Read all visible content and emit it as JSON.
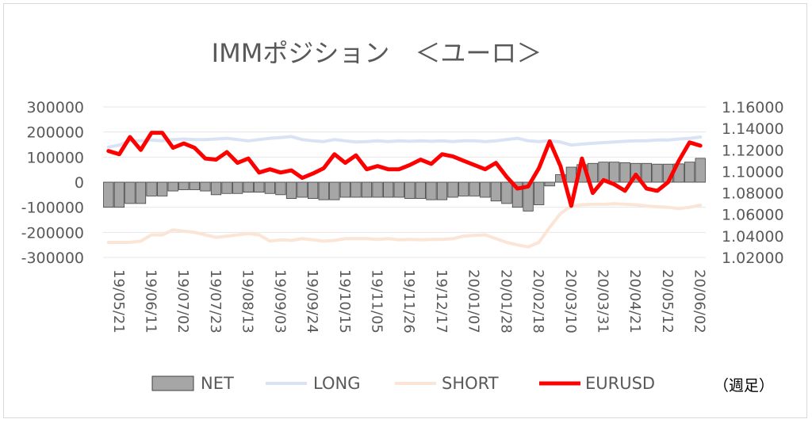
{
  "chart_data": {
    "type": "bar+line",
    "title": "IMMポジション　＜ユーロ＞",
    "note": "（週足）",
    "y_left": {
      "min": -300000,
      "max": 300000,
      "step": 100000,
      "ticks": [
        "300000",
        "200000",
        "100000",
        "0",
        "-100000",
        "-200000",
        "-300000"
      ]
    },
    "y_right": {
      "min": 1.02,
      "max": 1.16,
      "step": 0.02,
      "ticks": [
        "1.16000",
        "1.14000",
        "1.12000",
        "1.10000",
        "1.08000",
        "1.06000",
        "1.04000",
        "1.02000"
      ]
    },
    "x_tick_labels": [
      "19/05/21",
      "19/06/11",
      "19/07/02",
      "19/07/23",
      "19/08/13",
      "19/09/03",
      "19/09/24",
      "19/10/15",
      "19/11/05",
      "19/11/26",
      "19/12/17",
      "20/01/07",
      "20/01/28",
      "20/02/18",
      "20/03/10",
      "20/03/31",
      "20/04/21",
      "20/05/12",
      "20/06/02"
    ],
    "colors": {
      "net": "#a6a6a6",
      "long": "#dae3f3",
      "short": "#fbe5d6",
      "eurusd": "#ff0000"
    },
    "series": [
      {
        "name": "NET",
        "type": "bar",
        "axis": "left",
        "values": [
          -100000,
          -100000,
          -85000,
          -85000,
          -55000,
          -55000,
          -35000,
          -30000,
          -30000,
          -35000,
          -50000,
          -45000,
          -45000,
          -40000,
          -40000,
          -45000,
          -50000,
          -65000,
          -60000,
          -65000,
          -70000,
          -70000,
          -60000,
          -60000,
          -60000,
          -60000,
          -60000,
          -60000,
          -65000,
          -65000,
          -70000,
          -70000,
          -60000,
          -55000,
          -55000,
          -60000,
          -75000,
          -85000,
          -100000,
          -115000,
          -90000,
          -15000,
          30000,
          60000,
          70000,
          75000,
          80000,
          80000,
          78000,
          75000,
          75000,
          72000,
          72000,
          73000,
          80000,
          95000
        ]
      },
      {
        "name": "LONG",
        "type": "line",
        "axis": "left",
        "values": [
          140000,
          148000,
          165000,
          165000,
          168000,
          165000,
          170000,
          172000,
          170000,
          170000,
          172000,
          175000,
          170000,
          165000,
          170000,
          175000,
          178000,
          182000,
          170000,
          165000,
          162000,
          170000,
          165000,
          160000,
          162000,
          165000,
          162000,
          165000,
          163000,
          165000,
          163000,
          165000,
          162000,
          165000,
          165000,
          162000,
          165000,
          170000,
          175000,
          165000,
          162000,
          165000,
          160000,
          148000,
          152000,
          155000,
          158000,
          160000,
          163000,
          165000,
          165000,
          168000,
          168000,
          172000,
          175000,
          180000
        ]
      },
      {
        "name": "SHORT",
        "type": "line",
        "axis": "left",
        "values": [
          -240000,
          -240000,
          -240000,
          -235000,
          -210000,
          -210000,
          -190000,
          -195000,
          -200000,
          -210000,
          -220000,
          -215000,
          -210000,
          -205000,
          -210000,
          -235000,
          -230000,
          -232000,
          -225000,
          -230000,
          -235000,
          -232000,
          -225000,
          -225000,
          -225000,
          -228000,
          -225000,
          -230000,
          -228000,
          -230000,
          -228000,
          -228000,
          -225000,
          -215000,
          -212000,
          -210000,
          -225000,
          -240000,
          -250000,
          -258000,
          -240000,
          -180000,
          -125000,
          -95000,
          -90000,
          -88000,
          -88000,
          -86000,
          -88000,
          -90000,
          -95000,
          -98000,
          -100000,
          -105000,
          -100000,
          -92000
        ]
      },
      {
        "name": "EURUSD",
        "type": "line",
        "axis": "right",
        "values": [
          1.119,
          1.116,
          1.132,
          1.12,
          1.136,
          1.136,
          1.122,
          1.126,
          1.122,
          1.112,
          1.111,
          1.118,
          1.108,
          1.112,
          1.099,
          1.102,
          1.099,
          1.101,
          1.094,
          1.098,
          1.103,
          1.116,
          1.108,
          1.115,
          1.102,
          1.105,
          1.102,
          1.102,
          1.106,
          1.111,
          1.107,
          1.116,
          1.114,
          1.11,
          1.106,
          1.102,
          1.108,
          1.095,
          1.084,
          1.086,
          1.103,
          1.128,
          1.105,
          1.068,
          1.112,
          1.08,
          1.092,
          1.088,
          1.082,
          1.097,
          1.084,
          1.082,
          1.09,
          1.11,
          1.127,
          1.124
        ]
      }
    ],
    "legend": {
      "placement": "bottom"
    }
  }
}
